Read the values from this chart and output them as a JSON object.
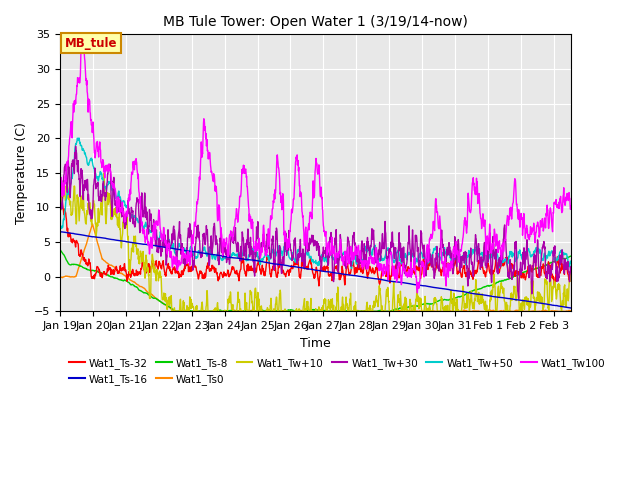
{
  "title": "MB Tule Tower: Open Water 1 (3/19/14-now)",
  "xlabel": "Time",
  "ylabel": "Temperature (C)",
  "ylim": [
    -5,
    35
  ],
  "bg_color": "#e8e8e8",
  "series": [
    {
      "name": "Wat1_Ts-32",
      "color": "#ff0000"
    },
    {
      "name": "Wat1_Ts-16",
      "color": "#0000cc"
    },
    {
      "name": "Wat1_Ts-8",
      "color": "#00cc00"
    },
    {
      "name": "Wat1_Ts0",
      "color": "#ff8800"
    },
    {
      "name": "Wat1_Tw+10",
      "color": "#cccc00"
    },
    {
      "name": "Wat1_Tw+30",
      "color": "#aa00aa"
    },
    {
      "name": "Wat1_Tw+50",
      "color": "#00cccc"
    },
    {
      "name": "Wat1_Tw100",
      "color": "#ff00ff"
    }
  ],
  "x_tick_labels": [
    "Jan 19",
    "Jan 20",
    "Jan 21",
    "Jan 22",
    "Jan 23",
    "Jan 24",
    "Jan 25",
    "Jan 26",
    "Jan 27",
    "Jan 28",
    "Jan 29",
    "Jan 30",
    "Jan 31",
    "Feb 1",
    "Feb 2",
    "Feb 3"
  ],
  "annotation_text": "MB_tule",
  "annotation_bg": "#ffffaa",
  "annotation_border": "#cc8800",
  "annotation_text_color": "#cc0000"
}
